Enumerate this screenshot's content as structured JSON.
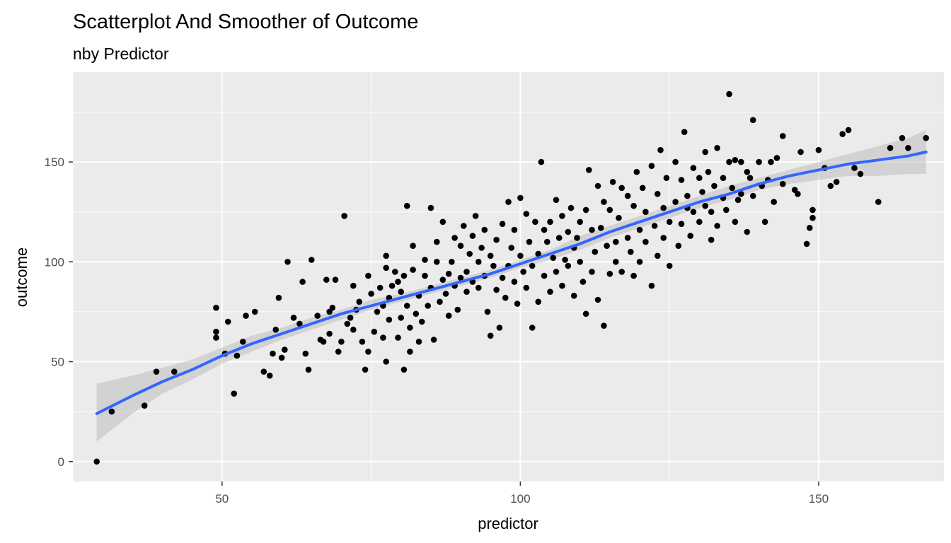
{
  "chart_data": {
    "type": "scatter",
    "title": "Scatterplot And Smoother of Outcome",
    "subtitle": "nby Predictor",
    "xlabel": "predictor",
    "ylabel": "outcome",
    "xlim": [
      25,
      171
    ],
    "ylim": [
      -10,
      195
    ],
    "x_ticks": [
      50,
      100,
      150
    ],
    "x_minor_ticks": [
      25,
      75,
      125
    ],
    "y_ticks": [
      0,
      50,
      100,
      150
    ],
    "y_minor_ticks": [
      25,
      75,
      125,
      175
    ],
    "grid": true,
    "legend": "none",
    "colors": {
      "panel": "#ebebeb",
      "grid": "#ffffff",
      "points": "#000000",
      "smoother": "#3366ff",
      "band": "#bdbdbd"
    },
    "series": [
      {
        "type": "points",
        "points": [
          [
            29,
            0
          ],
          [
            31.5,
            25
          ],
          [
            37,
            28
          ],
          [
            39,
            45
          ],
          [
            42,
            45
          ],
          [
            49,
            77
          ],
          [
            49,
            65
          ],
          [
            49,
            62
          ],
          [
            50.5,
            54
          ],
          [
            51,
            70
          ],
          [
            52,
            34
          ],
          [
            52.5,
            53
          ],
          [
            53.5,
            60
          ],
          [
            54,
            73
          ],
          [
            55.5,
            75
          ],
          [
            57,
            45
          ],
          [
            58,
            43
          ],
          [
            58.5,
            54
          ],
          [
            59,
            66
          ],
          [
            59.5,
            82
          ],
          [
            60,
            52
          ],
          [
            60.5,
            56
          ],
          [
            61,
            100
          ],
          [
            62,
            72
          ],
          [
            63,
            69
          ],
          [
            63.5,
            90
          ],
          [
            64,
            54
          ],
          [
            64.5,
            46
          ],
          [
            65,
            101
          ],
          [
            66,
            73
          ],
          [
            66.5,
            61
          ],
          [
            67,
            60
          ],
          [
            67.5,
            91
          ],
          [
            68,
            75
          ],
          [
            68,
            64
          ],
          [
            68.5,
            77
          ],
          [
            69,
            91
          ],
          [
            69.5,
            55
          ],
          [
            70,
            60
          ],
          [
            70.5,
            123
          ],
          [
            71,
            69
          ],
          [
            71.5,
            72
          ],
          [
            72,
            88
          ],
          [
            72,
            66
          ],
          [
            72.5,
            76
          ],
          [
            73,
            80
          ],
          [
            73.5,
            60
          ],
          [
            74,
            46
          ],
          [
            74.5,
            93
          ],
          [
            74.5,
            55
          ],
          [
            75,
            84
          ],
          [
            75.5,
            65
          ],
          [
            76,
            75
          ],
          [
            76.5,
            87
          ],
          [
            77,
            78
          ],
          [
            77,
            62
          ],
          [
            77.5,
            97
          ],
          [
            77.5,
            103
          ],
          [
            77.5,
            50
          ],
          [
            78,
            82
          ],
          [
            78,
            71
          ],
          [
            78.5,
            88
          ],
          [
            79,
            95
          ],
          [
            79.5,
            90
          ],
          [
            79.5,
            62
          ],
          [
            80,
            85
          ],
          [
            80,
            72
          ],
          [
            80.5,
            46
          ],
          [
            80.5,
            93
          ],
          [
            81,
            78
          ],
          [
            81,
            128
          ],
          [
            81.5,
            67
          ],
          [
            81.5,
            55
          ],
          [
            82,
            96
          ],
          [
            82,
            108
          ],
          [
            82.5,
            74
          ],
          [
            83,
            83
          ],
          [
            83,
            60
          ],
          [
            83.5,
            70
          ],
          [
            84,
            93
          ],
          [
            84,
            101
          ],
          [
            84.5,
            78
          ],
          [
            85,
            87
          ],
          [
            85,
            127
          ],
          [
            85.5,
            61
          ],
          [
            86,
            100
          ],
          [
            86,
            110
          ],
          [
            86.5,
            80
          ],
          [
            87,
            91
          ],
          [
            87,
            120
          ],
          [
            87.5,
            84
          ],
          [
            88,
            94
          ],
          [
            88,
            73
          ],
          [
            88.5,
            100
          ],
          [
            89,
            112
          ],
          [
            89,
            88
          ],
          [
            89.5,
            76
          ],
          [
            90,
            108
          ],
          [
            90,
            92
          ],
          [
            90.5,
            118
          ],
          [
            91,
            95
          ],
          [
            91,
            85
          ],
          [
            91.5,
            104
          ],
          [
            92,
            113
          ],
          [
            92,
            90
          ],
          [
            92.5,
            123
          ],
          [
            93,
            100
          ],
          [
            93,
            87
          ],
          [
            93.5,
            107
          ],
          [
            94,
            116
          ],
          [
            94,
            93
          ],
          [
            94.5,
            75
          ],
          [
            95,
            103
          ],
          [
            95,
            63
          ],
          [
            95.5,
            98
          ],
          [
            96,
            111
          ],
          [
            96,
            86
          ],
          [
            96.5,
            67
          ],
          [
            97,
            92
          ],
          [
            97,
            119
          ],
          [
            97.5,
            82
          ],
          [
            98,
            130
          ],
          [
            98,
            98
          ],
          [
            98.5,
            107
          ],
          [
            99,
            90
          ],
          [
            99,
            116
          ],
          [
            99.5,
            79
          ],
          [
            100,
            103
          ],
          [
            100,
            132
          ],
          [
            100.5,
            95
          ],
          [
            101,
            124
          ],
          [
            101,
            87
          ],
          [
            101.5,
            110
          ],
          [
            102,
            67
          ],
          [
            102,
            98
          ],
          [
            102.5,
            120
          ],
          [
            103,
            104
          ],
          [
            103,
            80
          ],
          [
            103.5,
            150
          ],
          [
            104,
            116
          ],
          [
            104,
            93
          ],
          [
            104.5,
            110
          ],
          [
            105,
            120
          ],
          [
            105,
            85
          ],
          [
            105.5,
            102
          ],
          [
            106,
            131
          ],
          [
            106,
            95
          ],
          [
            106.5,
            112
          ],
          [
            107,
            88
          ],
          [
            107,
            123
          ],
          [
            107.5,
            101
          ],
          [
            108,
            115
          ],
          [
            108,
            98
          ],
          [
            108.5,
            127
          ],
          [
            109,
            107
          ],
          [
            109,
            83
          ],
          [
            109.5,
            112
          ],
          [
            110,
            100
          ],
          [
            110,
            120
          ],
          [
            110.5,
            90
          ],
          [
            111,
            126
          ],
          [
            111,
            74
          ],
          [
            111.5,
            146
          ],
          [
            112,
            116
          ],
          [
            112,
            95
          ],
          [
            112.5,
            105
          ],
          [
            113,
            138
          ],
          [
            113,
            81
          ],
          [
            113.5,
            117
          ],
          [
            114,
            68
          ],
          [
            114,
            130
          ],
          [
            114.5,
            108
          ],
          [
            115,
            94
          ],
          [
            115,
            126
          ],
          [
            115.5,
            140
          ],
          [
            116,
            110
          ],
          [
            116,
            100
          ],
          [
            116.5,
            122
          ],
          [
            117,
            137
          ],
          [
            117,
            95
          ],
          [
            118,
            133
          ],
          [
            118,
            112
          ],
          [
            118.5,
            105
          ],
          [
            119,
            128
          ],
          [
            119,
            93
          ],
          [
            119.5,
            145
          ],
          [
            120,
            116
          ],
          [
            120,
            100
          ],
          [
            120.5,
            137
          ],
          [
            121,
            125
          ],
          [
            121,
            110
          ],
          [
            122,
            88
          ],
          [
            122,
            148
          ],
          [
            122.5,
            118
          ],
          [
            123,
            134
          ],
          [
            123,
            103
          ],
          [
            123.5,
            156
          ],
          [
            124,
            127
          ],
          [
            124,
            112
          ],
          [
            124.5,
            142
          ],
          [
            125,
            120
          ],
          [
            125,
            98
          ],
          [
            126,
            150
          ],
          [
            126,
            130
          ],
          [
            126.5,
            108
          ],
          [
            127,
            141
          ],
          [
            127,
            119
          ],
          [
            127.5,
            165
          ],
          [
            128,
            133
          ],
          [
            128,
            127
          ],
          [
            128.5,
            113
          ],
          [
            129,
            147
          ],
          [
            129,
            125
          ],
          [
            130,
            142
          ],
          [
            130,
            120
          ],
          [
            130.5,
            135
          ],
          [
            131,
            155
          ],
          [
            131,
            128
          ],
          [
            131.5,
            145
          ],
          [
            132,
            125
          ],
          [
            132,
            111
          ],
          [
            132.5,
            138
          ],
          [
            133,
            157
          ],
          [
            133,
            118
          ],
          [
            134,
            132
          ],
          [
            134,
            142
          ],
          [
            134.5,
            126
          ],
          [
            135,
            184
          ],
          [
            135,
            150
          ],
          [
            135.5,
            137
          ],
          [
            136,
            151
          ],
          [
            136,
            120
          ],
          [
            136.5,
            131
          ],
          [
            137,
            150
          ],
          [
            137,
            134
          ],
          [
            138,
            145
          ],
          [
            138,
            115
          ],
          [
            138.5,
            142
          ],
          [
            139,
            171
          ],
          [
            139,
            133
          ],
          [
            140,
            150
          ],
          [
            140.5,
            138
          ],
          [
            141,
            120
          ],
          [
            141.5,
            141
          ],
          [
            142,
            150
          ],
          [
            142.5,
            130
          ],
          [
            143,
            152
          ],
          [
            144,
            163
          ],
          [
            144,
            139
          ],
          [
            146,
            136
          ],
          [
            146.5,
            134
          ],
          [
            147,
            155
          ],
          [
            148,
            109
          ],
          [
            148.5,
            117
          ],
          [
            149,
            126
          ],
          [
            149,
            122
          ],
          [
            150,
            156
          ],
          [
            151,
            147
          ],
          [
            152,
            138
          ],
          [
            153,
            140
          ],
          [
            154,
            164
          ],
          [
            155,
            166
          ],
          [
            156,
            147
          ],
          [
            157,
            144
          ],
          [
            160,
            130
          ],
          [
            162,
            157
          ],
          [
            164,
            162
          ],
          [
            165,
            157
          ],
          [
            168,
            162
          ]
        ]
      },
      {
        "type": "loess",
        "x": [
          29,
          35,
          40,
          45,
          50,
          55,
          60,
          65,
          70,
          75,
          80,
          85,
          90,
          95,
          100,
          105,
          110,
          115,
          120,
          125,
          130,
          135,
          140,
          145,
          150,
          155,
          160,
          165,
          168
        ],
        "y": [
          24,
          33,
          40,
          46,
          53,
          59,
          64,
          69,
          74,
          78,
          82,
          86,
          90,
          94,
          99,
          104,
          109,
          115,
          120,
          125,
          130,
          134,
          139,
          143,
          146,
          149,
          151,
          153,
          155
        ],
        "ci_lower": [
          10,
          24,
          34,
          41,
          49,
          55,
          61,
          66,
          71,
          76,
          80,
          84,
          88,
          92,
          97,
          101,
          106,
          112,
          117,
          122,
          127,
          131,
          136,
          139,
          141,
          143,
          143,
          144,
          144
        ],
        "ci_upper": [
          39,
          43,
          47,
          51,
          57,
          63,
          67,
          72,
          76,
          81,
          84,
          88,
          92,
          96,
          101,
          106,
          113,
          118,
          123,
          128,
          133,
          138,
          142,
          146,
          150,
          154,
          158,
          162,
          166
        ]
      }
    ]
  }
}
